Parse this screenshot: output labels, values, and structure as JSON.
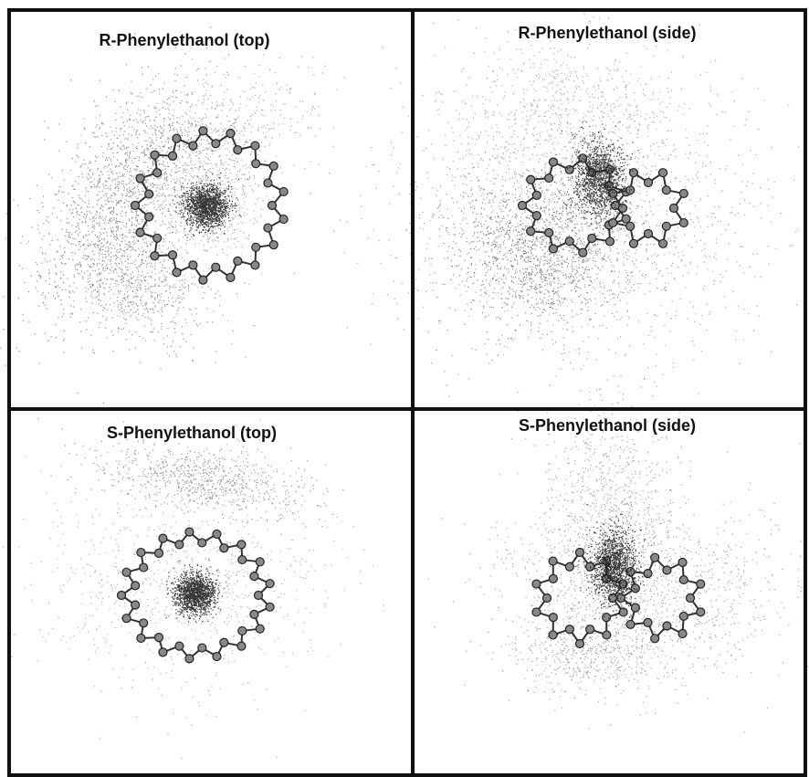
{
  "panels": [
    {
      "title": "R-Phenylethanol (top)"
    },
    {
      "title": "R-Phenylethanol (side)"
    },
    {
      "title": "S-Phenylethanol (top)"
    },
    {
      "title": "S-Phenylethanol (side)"
    }
  ]
}
